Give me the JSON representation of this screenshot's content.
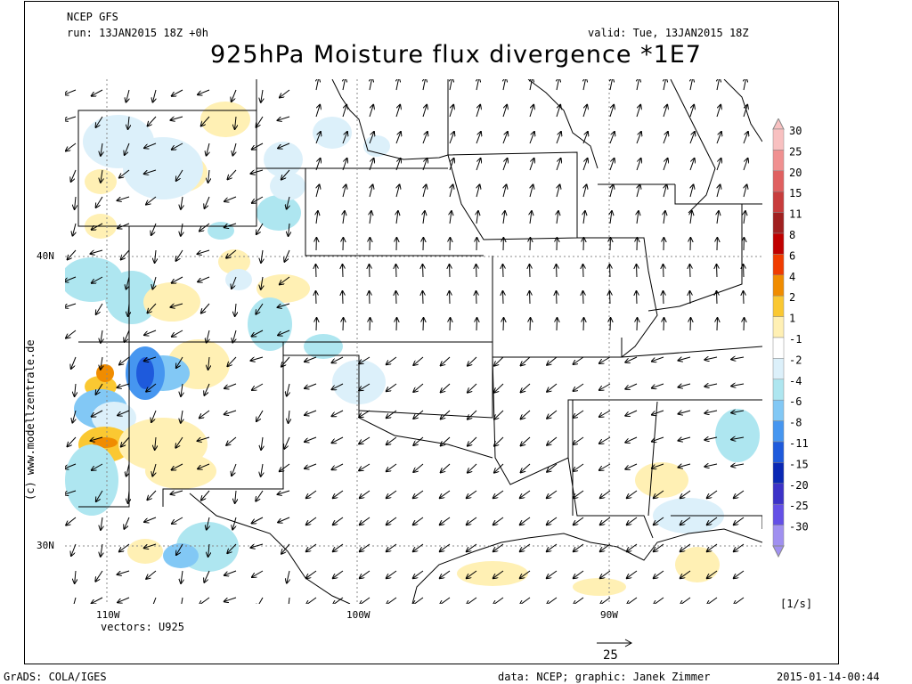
{
  "header": {
    "model": "NCEP GFS",
    "run": "run: 13JAN2015 18Z +0h",
    "valid": "valid: Tue, 13JAN2015 18Z",
    "title": "925hPa Moisture flux divergence *1E7"
  },
  "axes": {
    "lat_labels": [
      "40N",
      "30N"
    ],
    "lon_labels": [
      "110W",
      "100W",
      "90W"
    ]
  },
  "vectors_label": "vectors: U925",
  "reference_vector": "25",
  "units": "[1/s]",
  "credit": "(c) www.modellzentrale.de",
  "footer": {
    "left": "GrADS: COLA/IGES",
    "center": "data: NCEP; graphic: Janek Zimmer",
    "right": "2015-01-14-00:44"
  },
  "colorbar": {
    "levels": [
      "30",
      "25",
      "20",
      "15",
      "11",
      "8",
      "6",
      "4",
      "2",
      "1",
      "-1",
      "-2",
      "-4",
      "-6",
      "-8",
      "-11",
      "-15",
      "-20",
      "-25",
      "-30"
    ],
    "colors": [
      "#f8c0c0",
      "#f09090",
      "#e06060",
      "#c83c3c",
      "#a02020",
      "#c00000",
      "#f03c00",
      "#f08c00",
      "#fac832",
      "#fff0b4",
      "#ffffff",
      "#dcf0fa",
      "#aee6f0",
      "#82c8f5",
      "#4696f0",
      "#1e5adc",
      "#0a28b4",
      "#3c32c8",
      "#6450e6",
      "#a090f0"
    ]
  }
}
